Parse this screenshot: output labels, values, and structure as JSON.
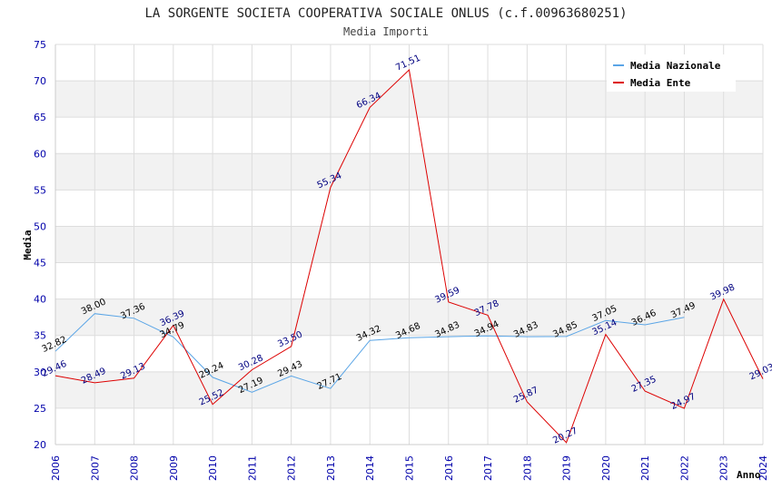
{
  "chart_data": {
    "type": "line",
    "title": "LA SORGENTE SOCIETA COOPERATIVA SOCIALE ONLUS (c.f.00963680251)",
    "subtitle": "Media Importi",
    "xlabel": "Anno",
    "ylabel": "Media",
    "ylim": [
      20,
      75
    ],
    "yticks": [
      20,
      25,
      30,
      35,
      40,
      45,
      50,
      55,
      60,
      65,
      70,
      75
    ],
    "ytick_labels": [
      "20",
      "25",
      "30",
      "35",
      "40",
      "45",
      "50",
      "55",
      "60",
      "65",
      "70",
      "75"
    ],
    "categories": [
      "2006",
      "2007",
      "2008",
      "2009",
      "2010",
      "2011",
      "2012",
      "2013",
      "2014",
      "2015",
      "2016",
      "2017",
      "2018",
      "2019",
      "2020",
      "2021",
      "2022",
      "2023",
      "2024"
    ],
    "grid": true,
    "legend_position": "top-right",
    "series": [
      {
        "name": "Media Nazionale",
        "color": "#5aa5e6",
        "label_color": "#000000",
        "values": [
          32.82,
          38.0,
          37.36,
          34.79,
          29.24,
          27.19,
          29.43,
          27.71,
          34.32,
          34.68,
          34.83,
          34.94,
          34.83,
          34.85,
          37.05,
          36.46,
          37.49,
          null,
          null
        ],
        "labels": [
          "32.82",
          "38.00",
          "37.36",
          "34.79",
          "29.24",
          "27.19",
          "29.43",
          "27.71",
          "34.32",
          "34.68",
          "34.83",
          "34.94",
          "34.83",
          "34.85",
          "37.05",
          "36.46",
          "37.49",
          null,
          null
        ]
      },
      {
        "name": "Media Ente",
        "color": "#dd0000",
        "label_color": "#000080",
        "values": [
          29.46,
          28.49,
          29.13,
          36.39,
          25.52,
          30.28,
          33.5,
          55.34,
          66.34,
          71.51,
          39.59,
          37.78,
          25.87,
          20.27,
          35.14,
          27.35,
          24.97,
          39.98,
          29.03
        ],
        "labels": [
          "29.46",
          "28.49",
          "29.13",
          "36.39",
          "25.52",
          "30.28",
          "33.50",
          "55.34",
          "66.34",
          "71.51",
          "39.59",
          "37.78",
          "25.87",
          "20.27",
          "35.14",
          "27.35",
          "24.97",
          "39.98",
          "29.03"
        ]
      }
    ]
  }
}
